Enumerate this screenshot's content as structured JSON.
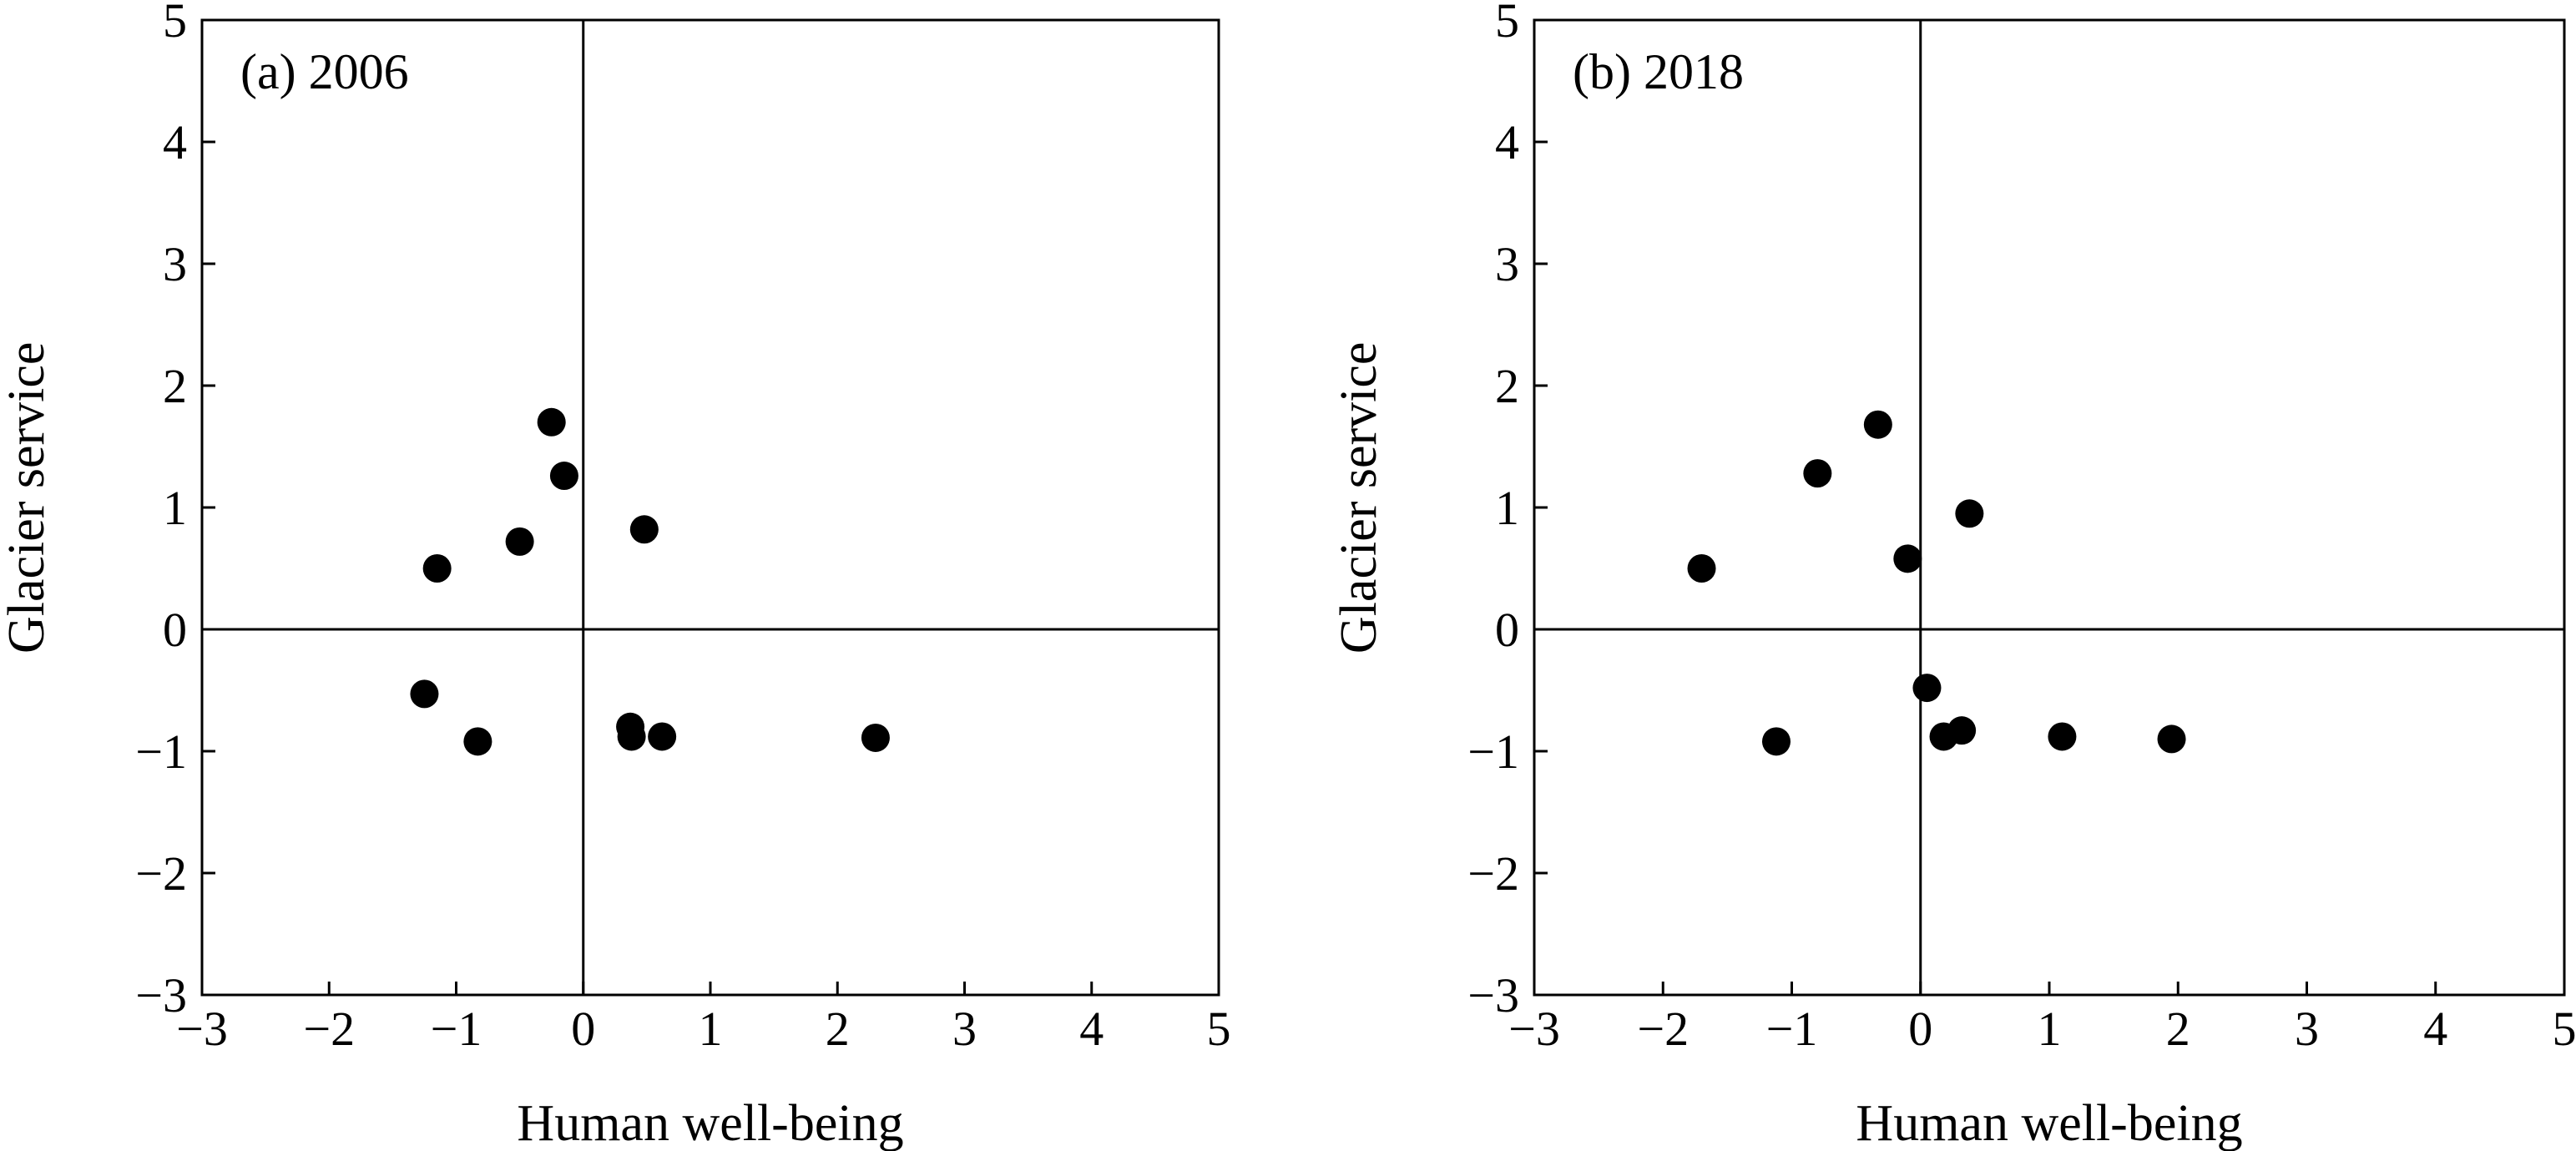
{
  "chart_data": [
    {
      "type": "scatter",
      "panel_label": "(a) 2006",
      "xlabel": "Human well-being",
      "ylabel": "Glacier service",
      "xlim": [
        -3,
        5
      ],
      "ylim": [
        -3,
        5
      ],
      "xticks": [
        "−3",
        "−2",
        "−1",
        "0",
        "1",
        "2",
        "3",
        "4",
        "5"
      ],
      "yticks": [
        "−3",
        "−2",
        "−1",
        "0",
        "1",
        "2",
        "3",
        "4",
        "5"
      ],
      "grid": false,
      "reference_lines": {
        "x": 0,
        "y": 0
      },
      "points": [
        {
          "x": -0.25,
          "y": 1.7
        },
        {
          "x": -0.15,
          "y": 1.26
        },
        {
          "x": -0.5,
          "y": 0.72
        },
        {
          "x": -1.15,
          "y": 0.5
        },
        {
          "x": 0.48,
          "y": 0.82
        },
        {
          "x": -1.25,
          "y": -0.53
        },
        {
          "x": -0.83,
          "y": -0.92
        },
        {
          "x": 0.37,
          "y": -0.8
        },
        {
          "x": 0.38,
          "y": -0.88
        },
        {
          "x": 0.62,
          "y": -0.88
        },
        {
          "x": 2.3,
          "y": -0.89
        }
      ]
    },
    {
      "type": "scatter",
      "panel_label": "(b) 2018",
      "xlabel": "Human well-being",
      "ylabel": "Glacier service",
      "xlim": [
        -3,
        5
      ],
      "ylim": [
        -3,
        5
      ],
      "xticks": [
        "−3",
        "−2",
        "−1",
        "0",
        "1",
        "2",
        "3",
        "4",
        "5"
      ],
      "yticks": [
        "−3",
        "−2",
        "−1",
        "0",
        "1",
        "2",
        "3",
        "4",
        "5"
      ],
      "grid": false,
      "reference_lines": {
        "x": 0,
        "y": 0
      },
      "points": [
        {
          "x": -0.33,
          "y": 1.68
        },
        {
          "x": -0.8,
          "y": 1.28
        },
        {
          "x": -1.7,
          "y": 0.5
        },
        {
          "x": -0.1,
          "y": 0.58
        },
        {
          "x": 0.38,
          "y": 0.95
        },
        {
          "x": 0.05,
          "y": -0.48
        },
        {
          "x": -1.12,
          "y": -0.92
        },
        {
          "x": 0.18,
          "y": -0.88
        },
        {
          "x": 0.32,
          "y": -0.83
        },
        {
          "x": 1.1,
          "y": -0.88
        },
        {
          "x": 1.95,
          "y": -0.9
        }
      ]
    }
  ]
}
